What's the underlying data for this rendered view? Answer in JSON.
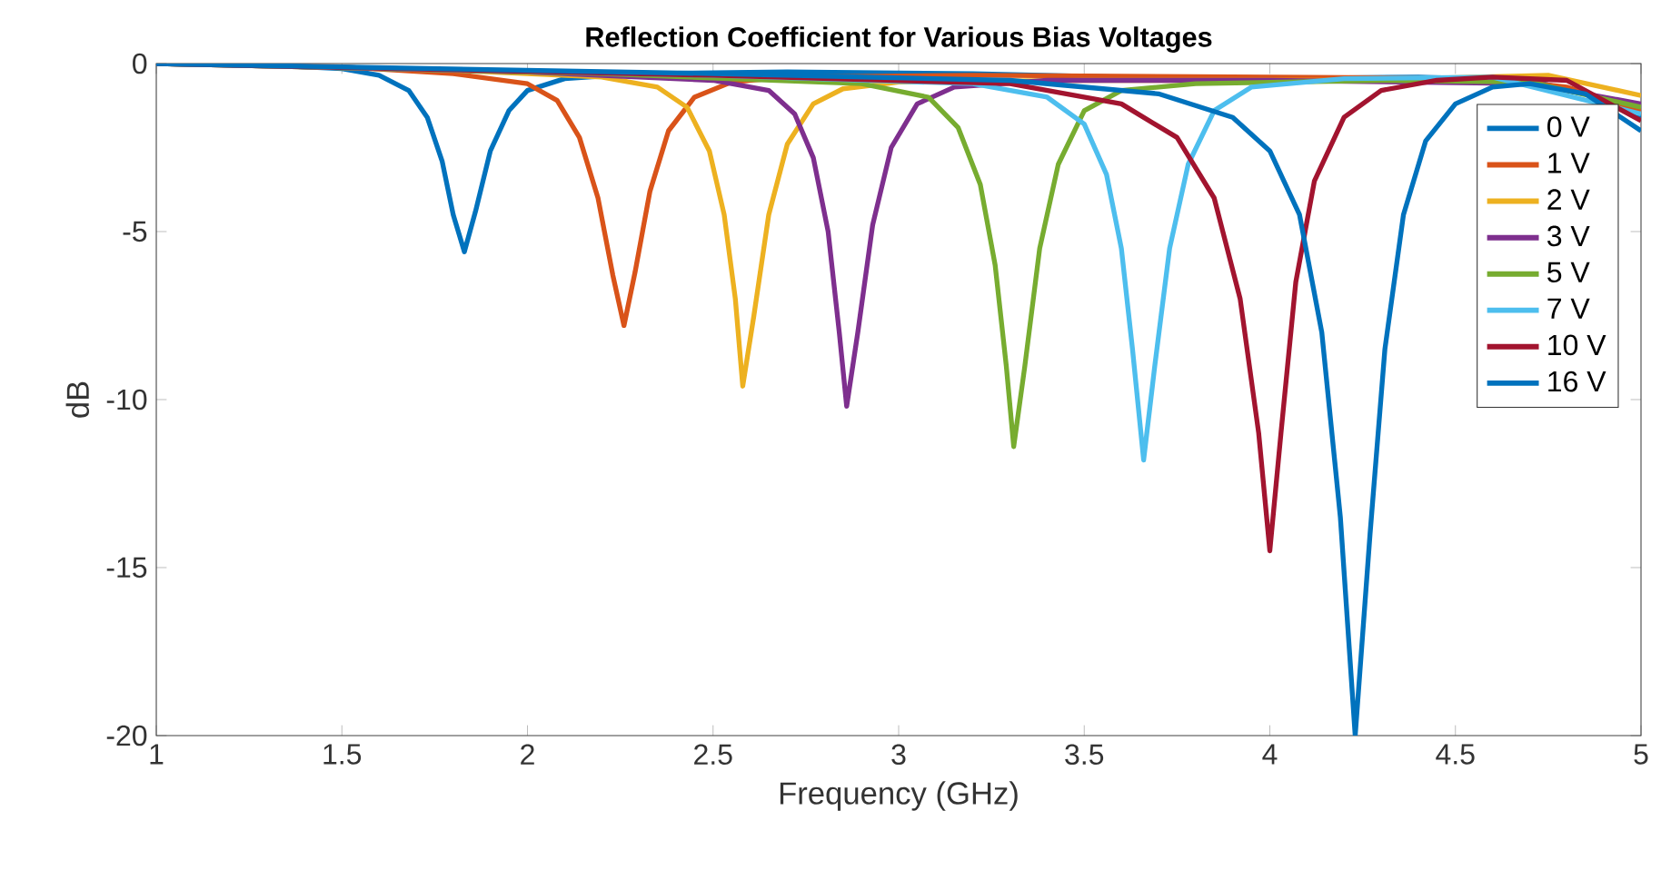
{
  "chart_data": {
    "type": "line",
    "title": "Reflection Coefficient for Various Bias Voltages",
    "xlabel": "Frequency (GHz)",
    "ylabel": "dB",
    "xlim": [
      1,
      5
    ],
    "ylim": [
      -20,
      0
    ],
    "xticks": [
      1,
      1.5,
      2,
      2.5,
      3,
      3.5,
      4,
      4.5,
      5
    ],
    "yticks": [
      -20,
      -15,
      -10,
      -5,
      0
    ],
    "grid": false,
    "legend": "top right",
    "line_style": "solid",
    "marker": "none",
    "series": [
      {
        "name": "0 V",
        "color": "#0072bd",
        "x": [
          1,
          1.3,
          1.5,
          1.6,
          1.68,
          1.73,
          1.77,
          1.8,
          1.83,
          1.86,
          1.9,
          1.95,
          2.0,
          2.1,
          2.3,
          2.7,
          3.2,
          3.6,
          4.0,
          4.4,
          4.7,
          4.85,
          5
        ],
        "values": [
          0,
          -0.05,
          -0.15,
          -0.35,
          -0.8,
          -1.6,
          -2.9,
          -4.5,
          -5.6,
          -4.4,
          -2.6,
          -1.4,
          -0.8,
          -0.45,
          -0.3,
          -0.25,
          -0.3,
          -0.4,
          -0.45,
          -0.4,
          -0.5,
          -0.9,
          -1.6
        ]
      },
      {
        "name": "1 V",
        "color": "#d95319",
        "x": [
          1,
          1.5,
          1.8,
          2.0,
          2.08,
          2.14,
          2.19,
          2.23,
          2.26,
          2.29,
          2.33,
          2.38,
          2.45,
          2.55,
          2.7,
          3.2,
          4.0,
          4.6,
          4.8,
          5
        ],
        "values": [
          0,
          -0.1,
          -0.3,
          -0.6,
          -1.1,
          -2.2,
          -4,
          -6.3,
          -7.8,
          -6.2,
          -3.8,
          -2,
          -1,
          -0.55,
          -0.4,
          -0.35,
          -0.4,
          -0.45,
          -0.7,
          -1.4
        ]
      },
      {
        "name": "2 V",
        "color": "#edb120",
        "x": [
          1,
          1.8,
          2.2,
          2.35,
          2.43,
          2.49,
          2.53,
          2.56,
          2.58,
          2.61,
          2.65,
          2.7,
          2.77,
          2.85,
          3.0,
          3.5,
          4.2,
          4.75,
          5
        ],
        "values": [
          0,
          -0.2,
          -0.4,
          -0.7,
          -1.3,
          -2.6,
          -4.5,
          -7,
          -9.6,
          -7.5,
          -4.5,
          -2.4,
          -1.2,
          -0.75,
          -0.55,
          -0.5,
          -0.5,
          -0.35,
          -0.95
        ]
      },
      {
        "name": "3 V",
        "color": "#7e2f8e",
        "x": [
          1,
          2,
          2.5,
          2.65,
          2.72,
          2.77,
          2.81,
          2.84,
          2.86,
          2.89,
          2.93,
          2.98,
          3.05,
          3.15,
          3.4,
          4,
          4.7,
          5
        ],
        "values": [
          0,
          -0.25,
          -0.5,
          -0.8,
          -1.5,
          -2.8,
          -5,
          -8,
          -10.2,
          -8,
          -4.8,
          -2.5,
          -1.2,
          -0.7,
          -0.5,
          -0.5,
          -0.6,
          -1.2
        ]
      },
      {
        "name": "5 V",
        "color": "#77ac30",
        "x": [
          1,
          2.2,
          2.9,
          3.08,
          3.16,
          3.22,
          3.26,
          3.29,
          3.31,
          3.34,
          3.38,
          3.43,
          3.5,
          3.6,
          3.8,
          4.3,
          4.7,
          5
        ],
        "values": [
          0,
          -0.3,
          -0.6,
          -1,
          -1.9,
          -3.6,
          -6,
          -9,
          -11.4,
          -9,
          -5.5,
          -3,
          -1.4,
          -0.8,
          -0.6,
          -0.5,
          -0.55,
          -1.3
        ]
      },
      {
        "name": "7 V",
        "color": "#4dbeee",
        "x": [
          1,
          2.5,
          3.2,
          3.4,
          3.5,
          3.56,
          3.6,
          3.63,
          3.66,
          3.69,
          3.73,
          3.78,
          3.85,
          3.95,
          4.2,
          4.6,
          5
        ],
        "values": [
          0,
          -0.35,
          -0.6,
          -1,
          -1.8,
          -3.3,
          -5.5,
          -8.5,
          -11.8,
          -9,
          -5.5,
          -3,
          -1.4,
          -0.7,
          -0.45,
          -0.4,
          -1.5
        ]
      },
      {
        "name": "10 V",
        "color": "#a2142f",
        "x": [
          1,
          2.5,
          3.3,
          3.6,
          3.75,
          3.85,
          3.92,
          3.97,
          4.0,
          4.03,
          4.07,
          4.12,
          4.2,
          4.3,
          4.45,
          4.6,
          4.8,
          5
        ],
        "values": [
          0,
          -0.35,
          -0.6,
          -1.2,
          -2.2,
          -4,
          -7,
          -11,
          -14.5,
          -11,
          -6.5,
          -3.5,
          -1.6,
          -0.8,
          -0.5,
          -0.4,
          -0.5,
          -1.7
        ]
      },
      {
        "name": "16 V",
        "color": "#0072bd",
        "x": [
          1,
          2.5,
          3.3,
          3.7,
          3.9,
          4.0,
          4.08,
          4.14,
          4.19,
          4.23,
          4.27,
          4.31,
          4.36,
          4.42,
          4.5,
          4.6,
          4.7,
          4.85,
          5
        ],
        "values": [
          0,
          -0.3,
          -0.5,
          -0.9,
          -1.6,
          -2.6,
          -4.5,
          -8,
          -13.5,
          -20,
          -14,
          -8.5,
          -4.5,
          -2.3,
          -1.2,
          -0.7,
          -0.6,
          -0.9,
          -2
        ]
      }
    ]
  }
}
